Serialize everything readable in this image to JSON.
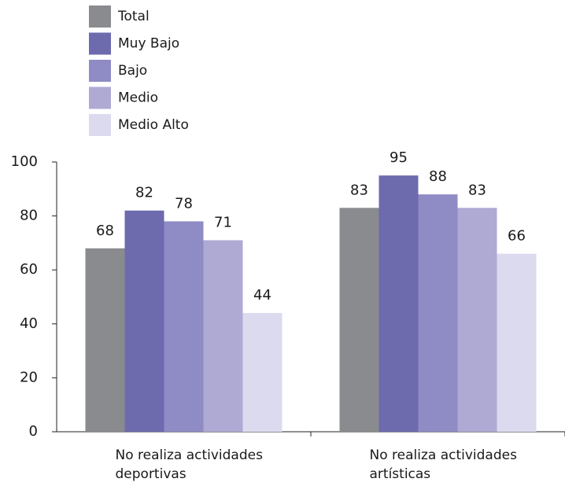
{
  "chart_data": {
    "type": "bar",
    "categories": [
      "No realiza actividades deportivas",
      "No realiza actividades artísticas"
    ],
    "series": [
      {
        "name": "Total",
        "color": "#8a8b8e",
        "values": [
          68,
          83
        ]
      },
      {
        "name": "Muy Bajo",
        "color": "#6e6aae",
        "values": [
          82,
          95
        ]
      },
      {
        "name": "Bajo",
        "color": "#8f8bc4",
        "values": [
          78,
          88
        ]
      },
      {
        "name": "Medio",
        "color": "#aeaad4",
        "values": [
          71,
          83
        ]
      },
      {
        "name": "Medio Alto",
        "color": "#dcdaee",
        "values": [
          44,
          66
        ]
      }
    ],
    "ylim": [
      0,
      100
    ],
    "yticks": [
      0,
      20,
      40,
      60,
      80,
      100
    ]
  }
}
